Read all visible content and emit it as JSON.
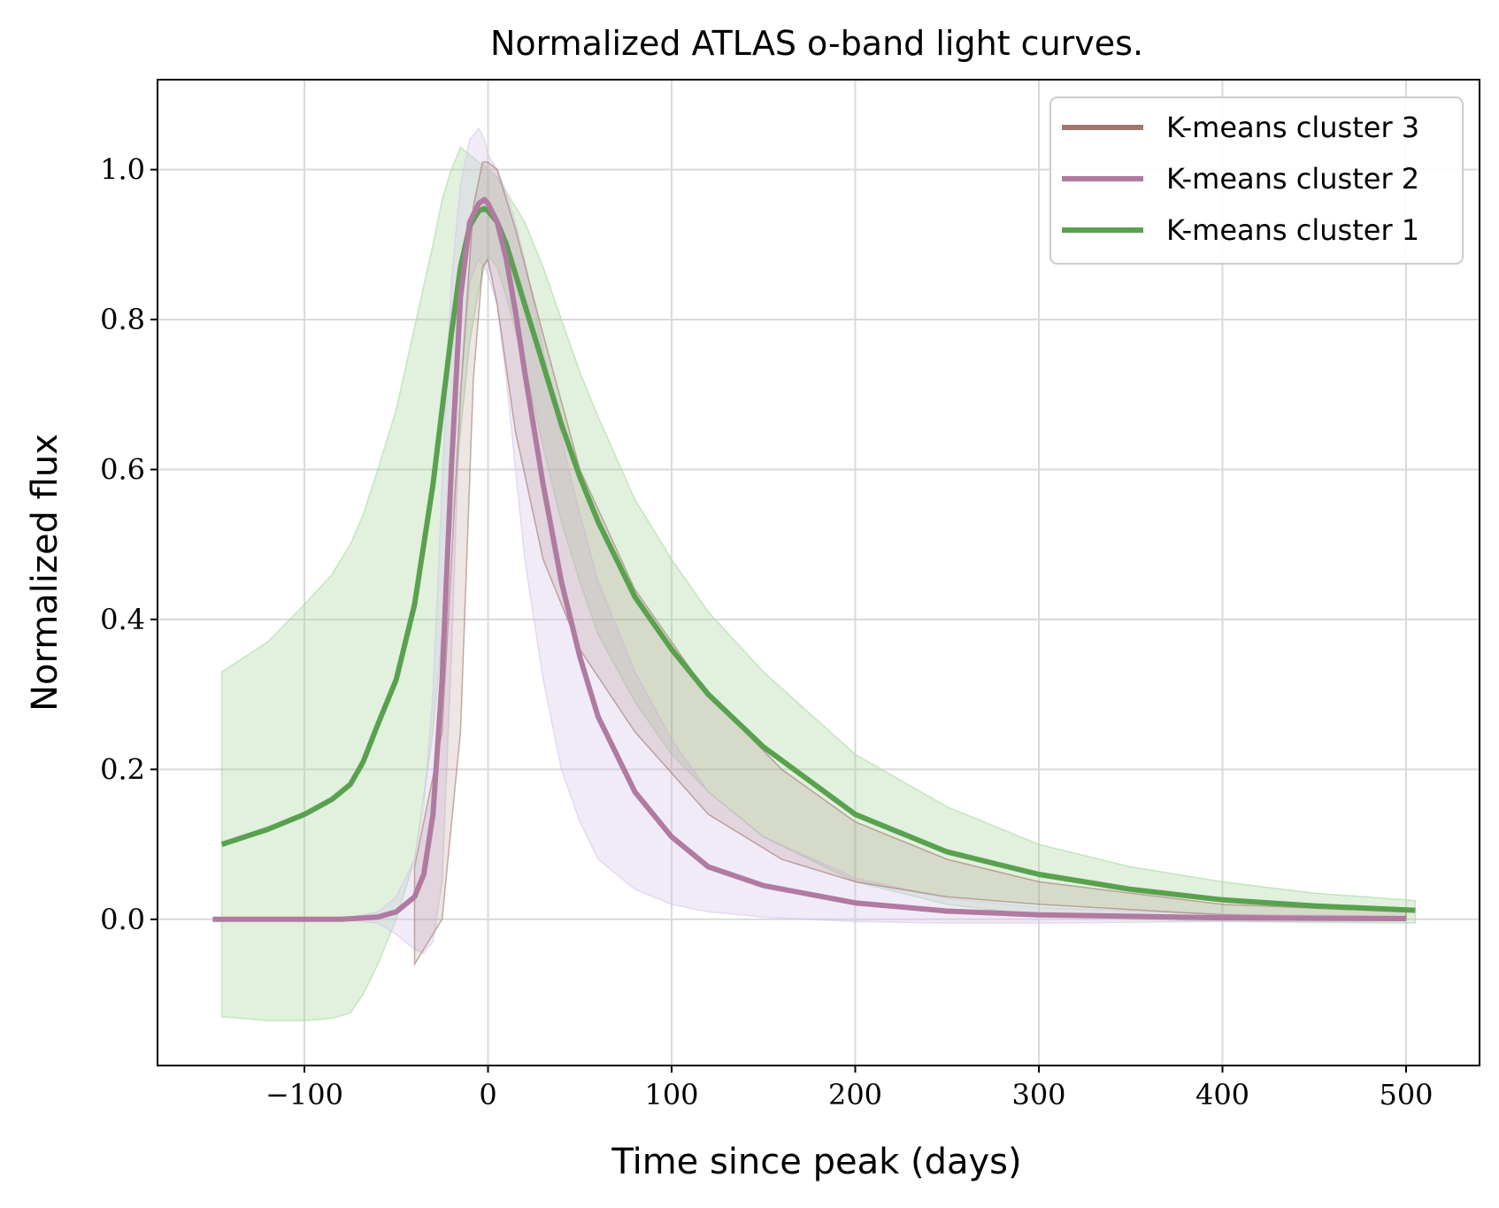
{
  "chart_data": {
    "type": "line",
    "title": "Normalized ATLAS o-band light curves.",
    "xlabel": "Time since peak (days)",
    "ylabel": "Normalized flux",
    "xlim": [
      -180,
      540
    ],
    "ylim": [
      -0.195,
      1.12
    ],
    "grid": true,
    "legend_position": "top-right",
    "x_ticks": [
      -100,
      0,
      100,
      200,
      300,
      400,
      500
    ],
    "x_tick_labels": [
      "−100",
      "0",
      "100",
      "200",
      "300",
      "400",
      "500"
    ],
    "y_ticks": [
      0.0,
      0.2,
      0.4,
      0.6,
      0.8,
      1.0
    ],
    "y_tick_labels": [
      "0.0",
      "0.2",
      "0.4",
      "0.6",
      "0.8",
      "1.0"
    ],
    "series": [
      {
        "name": "K-means cluster 3",
        "color": "#a0776a",
        "x": [
          -40,
          -25,
          -15,
          -8,
          -3,
          0,
          5,
          15,
          30,
          50,
          80,
          120,
          160,
          200,
          250,
          300,
          400,
          500
        ],
        "y": [
          0.0,
          0.1,
          0.45,
          0.85,
          0.96,
          0.95,
          0.9,
          0.78,
          0.62,
          0.47,
          0.33,
          0.2,
          0.12,
          0.08,
          0.05,
          0.03,
          0.012,
          0.005
        ],
        "band_lower": [
          -0.06,
          0.0,
          0.25,
          0.72,
          0.87,
          0.88,
          0.82,
          0.65,
          0.48,
          0.36,
          0.25,
          0.14,
          0.08,
          0.05,
          0.03,
          0.02,
          0.006,
          0.0
        ],
        "band_upper": [
          0.07,
          0.25,
          0.7,
          0.95,
          1.01,
          1.01,
          1.0,
          0.92,
          0.78,
          0.6,
          0.44,
          0.3,
          0.2,
          0.13,
          0.08,
          0.05,
          0.02,
          0.01
        ]
      },
      {
        "name": "K-means cluster 2",
        "color": "#b07aa1",
        "band_color": "#d6c6ea",
        "x": [
          -150,
          -100,
          -80,
          -60,
          -50,
          -40,
          -35,
          -30,
          -25,
          -20,
          -15,
          -10,
          -5,
          -2,
          0,
          5,
          10,
          15,
          20,
          30,
          40,
          50,
          60,
          80,
          100,
          120,
          150,
          200,
          250,
          300,
          400,
          500
        ],
        "y": [
          0.0,
          0.0,
          0.0,
          0.003,
          0.01,
          0.03,
          0.06,
          0.14,
          0.32,
          0.6,
          0.83,
          0.93,
          0.955,
          0.96,
          0.955,
          0.93,
          0.88,
          0.81,
          0.73,
          0.58,
          0.45,
          0.35,
          0.27,
          0.17,
          0.11,
          0.07,
          0.045,
          0.022,
          0.011,
          0.006,
          0.002,
          0.001
        ],
        "band_lower": [
          0.0,
          0.0,
          0.0,
          -0.005,
          -0.02,
          -0.04,
          -0.045,
          -0.03,
          0.05,
          0.35,
          0.7,
          0.85,
          0.88,
          0.87,
          0.86,
          0.82,
          0.72,
          0.6,
          0.48,
          0.32,
          0.2,
          0.13,
          0.08,
          0.04,
          0.02,
          0.01,
          0.003,
          -0.003,
          -0.005,
          -0.005,
          -0.003,
          -0.002
        ],
        "band_upper": [
          0.0,
          0.0,
          0.0,
          0.01,
          0.03,
          0.08,
          0.15,
          0.3,
          0.58,
          0.85,
          0.98,
          1.04,
          1.055,
          1.04,
          1.02,
          1.0,
          0.97,
          0.93,
          0.88,
          0.76,
          0.64,
          0.54,
          0.45,
          0.33,
          0.24,
          0.17,
          0.11,
          0.055,
          0.028,
          0.016,
          0.007,
          0.004
        ]
      },
      {
        "name": "K-means cluster 1",
        "color": "#59a14f",
        "band_color": "#a8d8a0",
        "x": [
          -145,
          -120,
          -100,
          -85,
          -75,
          -68,
          -60,
          -50,
          -40,
          -30,
          -25,
          -20,
          -15,
          -10,
          -5,
          -2,
          0,
          5,
          10,
          20,
          30,
          40,
          50,
          60,
          80,
          100,
          120,
          150,
          200,
          250,
          300,
          350,
          400,
          450,
          505
        ],
        "y": [
          0.1,
          0.12,
          0.14,
          0.16,
          0.18,
          0.21,
          0.26,
          0.32,
          0.42,
          0.58,
          0.68,
          0.78,
          0.87,
          0.925,
          0.945,
          0.948,
          0.945,
          0.93,
          0.9,
          0.82,
          0.74,
          0.66,
          0.59,
          0.53,
          0.43,
          0.36,
          0.3,
          0.23,
          0.14,
          0.09,
          0.06,
          0.04,
          0.026,
          0.018,
          0.012
        ],
        "band_lower": [
          -0.13,
          -0.135,
          -0.135,
          -0.132,
          -0.125,
          -0.1,
          -0.06,
          0.0,
          0.08,
          0.25,
          0.38,
          0.52,
          0.65,
          0.77,
          0.84,
          0.87,
          0.885,
          0.87,
          0.83,
          0.74,
          0.63,
          0.53,
          0.45,
          0.38,
          0.29,
          0.22,
          0.17,
          0.11,
          0.05,
          0.02,
          0.005,
          0.0,
          -0.003,
          -0.004,
          -0.005
        ],
        "band_upper": [
          0.33,
          0.37,
          0.42,
          0.46,
          0.5,
          0.54,
          0.6,
          0.68,
          0.79,
          0.9,
          0.96,
          1.0,
          1.03,
          1.02,
          1.01,
          1.005,
          1.0,
          0.99,
          0.97,
          0.93,
          0.87,
          0.8,
          0.73,
          0.67,
          0.56,
          0.48,
          0.41,
          0.33,
          0.22,
          0.15,
          0.1,
          0.07,
          0.05,
          0.035,
          0.025
        ]
      }
    ]
  }
}
